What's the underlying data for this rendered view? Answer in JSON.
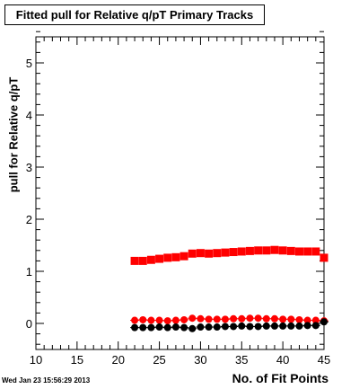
{
  "chart_data": {
    "type": "scatter",
    "title": "Fitted pull for Relative q/pT Primary Tracks",
    "xlabel": "No. of Fit Points",
    "ylabel": "pull for Relative q/pT",
    "xlim": [
      10,
      45
    ],
    "ylim": [
      -0.5,
      5.5
    ],
    "x_ticks": [
      "10",
      "15",
      "20",
      "25",
      "30",
      "35",
      "40",
      "45"
    ],
    "y_ticks": [
      "0",
      "1",
      "2",
      "3",
      "4",
      "5"
    ],
    "grid": false,
    "legend": "none",
    "series": [
      {
        "color": "#ff0000",
        "marker": "square",
        "x": [
          22,
          23,
          24,
          25,
          26,
          27,
          28,
          29,
          30,
          31,
          32,
          33,
          34,
          35,
          36,
          37,
          38,
          39,
          40,
          41,
          42,
          43,
          44,
          45
        ],
        "y": [
          1.2,
          1.2,
          1.22,
          1.24,
          1.26,
          1.27,
          1.29,
          1.34,
          1.35,
          1.34,
          1.35,
          1.36,
          1.37,
          1.38,
          1.39,
          1.4,
          1.4,
          1.41,
          1.4,
          1.39,
          1.38,
          1.38,
          1.38,
          1.26
        ]
      },
      {
        "color": "#ff0000",
        "marker": "circle",
        "x": [
          22,
          23,
          24,
          25,
          26,
          27,
          28,
          29,
          30,
          31,
          32,
          33,
          34,
          35,
          36,
          37,
          38,
          39,
          40,
          41,
          42,
          43,
          44,
          45
        ],
        "y": [
          0.06,
          0.07,
          0.06,
          0.06,
          0.05,
          0.06,
          0.07,
          0.1,
          0.09,
          0.08,
          0.08,
          0.08,
          0.09,
          0.09,
          0.1,
          0.1,
          0.09,
          0.09,
          0.08,
          0.08,
          0.07,
          0.06,
          0.06,
          0.05
        ]
      },
      {
        "color": "#000000",
        "marker": "circle",
        "x": [
          22,
          23,
          24,
          25,
          26,
          27,
          28,
          29,
          30,
          31,
          32,
          33,
          34,
          35,
          36,
          37,
          38,
          39,
          40,
          41,
          42,
          43,
          44,
          45
        ],
        "y": [
          -0.08,
          -0.08,
          -0.08,
          -0.07,
          -0.08,
          -0.07,
          -0.08,
          -0.1,
          -0.07,
          -0.07,
          -0.07,
          -0.06,
          -0.06,
          -0.05,
          -0.06,
          -0.06,
          -0.05,
          -0.05,
          -0.05,
          -0.05,
          -0.05,
          -0.04,
          -0.04,
          0.03
        ]
      }
    ]
  },
  "footer": {
    "datestamp": "Wed Jan 23 15:56:29 2013"
  }
}
